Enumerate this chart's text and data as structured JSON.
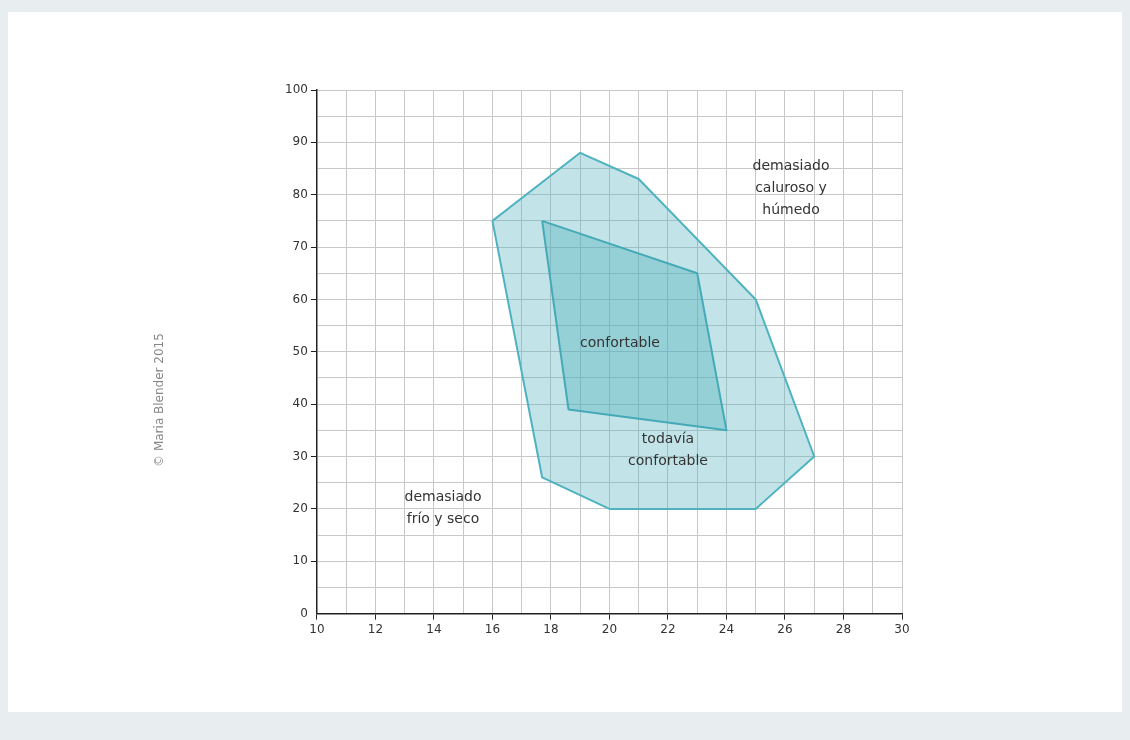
{
  "chart_data": {
    "type": "area",
    "series": [
      {
        "color": "#4fb3bf",
        "x": [
          16,
          19,
          21,
          25,
          27,
          25,
          20,
          17.7,
          16
        ],
        "values": [
          75,
          88,
          83,
          60,
          30,
          20,
          20,
          26,
          75
        ]
      },
      {
        "color": "#3fa6b2",
        "x": [
          17.7,
          23,
          24,
          18.6,
          17.7
        ],
        "values": [
          75,
          65,
          35,
          39,
          75
        ]
      }
    ],
    "xlim": [
      10,
      30
    ],
    "xticks": [
      10,
      {
        "value": 11,
        "label": null
      },
      12,
      {
        "value": 13,
        "label": null
      },
      14,
      {
        "value": 15,
        "label": null
      },
      16,
      {
        "value": 17,
        "label": null
      },
      18,
      {
        "value": 19,
        "label": null
      },
      20,
      {
        "value": 21,
        "label": null
      },
      22,
      {
        "value": 23,
        "label": null
      },
      24,
      {
        "value": 25,
        "label": null
      },
      26,
      {
        "value": 27,
        "label": null
      },
      28,
      {
        "value": 29,
        "label": null
      },
      30
    ],
    "ylim": [
      0,
      100
    ],
    "yticks": [
      0,
      {
        "value": 5,
        "label": null
      },
      10,
      {
        "value": 15,
        "label": null
      },
      20,
      {
        "value": 25,
        "label": null
      },
      30,
      {
        "value": 35,
        "label": null
      },
      40,
      {
        "value": 45,
        "label": null
      },
      50,
      {
        "value": 55,
        "label": null
      },
      60,
      {
        "value": 65,
        "label": null
      },
      70,
      {
        "value": 75,
        "label": null
      },
      80,
      {
        "value": 85,
        "label": null
      },
      90,
      {
        "value": 95,
        "label": null
      },
      100
    ],
    "grid": true,
    "annotations": [
      "demasiado caluroso y húmedo",
      "confortable",
      "todavía confortable",
      "demasiado frío y seco",
      "© Maria Blender 2015"
    ]
  }
}
